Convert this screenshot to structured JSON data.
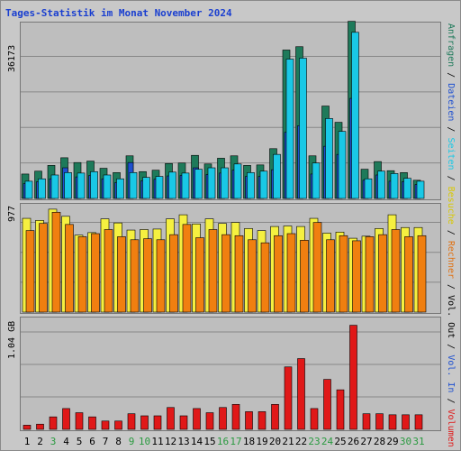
{
  "title": "Tages-Statistik im Monat November 2024",
  "colors": {
    "anfragen": "#1e7a5a",
    "dateien": "#1e50d0",
    "seiten": "#19c8e6",
    "besuche": "#f5f040",
    "rechner": "#f07f10",
    "volumen": "#e01818",
    "weekend": "#2a9a40"
  },
  "legend": {
    "top": [
      {
        "text": "Anfragen",
        "color": "#1e7a5a"
      },
      {
        "text": " / ",
        "color": "#000000"
      },
      {
        "text": "Dateien",
        "color": "#1e50d0"
      },
      {
        "text": " / ",
        "color": "#000000"
      },
      {
        "text": "Seiten",
        "color": "#19c8e6"
      },
      {
        "text": " / ",
        "color": "#000000"
      },
      {
        "text": "Besuche",
        "color": "#d8c800"
      },
      {
        "text": " / ",
        "color": "#000000"
      },
      {
        "text": "Rechner",
        "color": "#e07010"
      },
      {
        "text": " / ",
        "color": "#000000"
      },
      {
        "text": "Vol. Out",
        "color": "#000000"
      },
      {
        "text": " / ",
        "color": "#000000"
      },
      {
        "text": "Vol. In",
        "color": "#1e50d0"
      },
      {
        "text": " / ",
        "color": "#000000"
      },
      {
        "text": "Volumen",
        "color": "#e01818"
      }
    ]
  },
  "chart_data": [
    {
      "type": "bar",
      "title": "",
      "ymax_label": "36173",
      "ylim": [
        0,
        36173
      ],
      "categories": [
        "1",
        "2",
        "3",
        "4",
        "5",
        "6",
        "7",
        "8",
        "9",
        "10",
        "11",
        "12",
        "13",
        "14",
        "15",
        "16",
        "17",
        "18",
        "19",
        "20",
        "21",
        "22",
        "23",
        "24",
        "25",
        "26",
        "27",
        "28",
        "29",
        "30",
        "31"
      ],
      "weekend": [
        false,
        false,
        true,
        false,
        false,
        false,
        false,
        false,
        true,
        true,
        false,
        false,
        false,
        false,
        false,
        true,
        true,
        false,
        false,
        false,
        false,
        false,
        true,
        true,
        false,
        false,
        false,
        false,
        false,
        true,
        true
      ],
      "series": [
        {
          "name": "Anfragen",
          "values": [
            5100,
            5700,
            6900,
            8500,
            7500,
            7800,
            6300,
            5400,
            8900,
            5600,
            5900,
            7300,
            7400,
            9000,
            7200,
            8400,
            8900,
            6900,
            7000,
            10400,
            31000,
            31700,
            8900,
            19300,
            15900,
            37000,
            6100,
            7700,
            5800,
            5400,
            3800
          ]
        },
        {
          "name": "Dateien",
          "values": [
            3100,
            3500,
            4100,
            6400,
            4500,
            4800,
            4100,
            3300,
            7500,
            3700,
            4000,
            4700,
            4800,
            6400,
            5000,
            5300,
            5900,
            4600,
            4600,
            6000,
            13800,
            15200,
            5100,
            10900,
            9200,
            20900,
            3800,
            4900,
            3600,
            3500,
            2900
          ]
        },
        {
          "name": "Seiten",
          "values": [
            3600,
            4100,
            4900,
            5400,
            5300,
            5600,
            4900,
            4100,
            5400,
            4400,
            4600,
            5500,
            5300,
            6100,
            6400,
            6400,
            7200,
            5400,
            5700,
            9200,
            29100,
            29300,
            7400,
            16700,
            14000,
            34700,
            4100,
            5700,
            5200,
            4200,
            3600
          ]
        }
      ]
    },
    {
      "type": "bar",
      "title": "",
      "ymax_label": "977",
      "ylim": [
        0,
        977
      ],
      "categories": [
        "1",
        "2",
        "3",
        "4",
        "5",
        "6",
        "7",
        "8",
        "9",
        "10",
        "11",
        "12",
        "13",
        "14",
        "15",
        "16",
        "17",
        "18",
        "19",
        "20",
        "21",
        "22",
        "23",
        "24",
        "25",
        "26",
        "27",
        "28",
        "29",
        "30",
        "31"
      ],
      "series": [
        {
          "name": "Besuche",
          "values": [
            920,
            900,
            1010,
            940,
            755,
            780,
            915,
            875,
            805,
            810,
            815,
            915,
            955,
            865,
            915,
            870,
            880,
            820,
            800,
            840,
            845,
            840,
            920,
            775,
            785,
            725,
            745,
            820,
            955,
            830,
            830
          ]
        },
        {
          "name": "Rechner",
          "values": [
            800,
            870,
            980,
            860,
            740,
            770,
            810,
            740,
            710,
            720,
            710,
            760,
            860,
            730,
            810,
            760,
            750,
            710,
            680,
            750,
            770,
            705,
            880,
            710,
            750,
            700,
            740,
            760,
            810,
            740,
            750
          ]
        }
      ]
    },
    {
      "type": "bar",
      "title": "",
      "ymax_label": "1.04 GB",
      "ylim": [
        0,
        1.04
      ],
      "categories": [
        "1",
        "2",
        "3",
        "4",
        "5",
        "6",
        "7",
        "8",
        "9",
        "10",
        "11",
        "12",
        "13",
        "14",
        "15",
        "16",
        "17",
        "18",
        "19",
        "20",
        "21",
        "22",
        "23",
        "24",
        "25",
        "26",
        "27",
        "28",
        "29",
        "30",
        "31"
      ],
      "series": [
        {
          "name": "Volumen",
          "values": [
            0.04,
            0.05,
            0.12,
            0.2,
            0.16,
            0.12,
            0.08,
            0.08,
            0.15,
            0.13,
            0.13,
            0.21,
            0.13,
            0.2,
            0.16,
            0.21,
            0.24,
            0.17,
            0.17,
            0.24,
            0.6,
            0.68,
            0.2,
            0.48,
            0.38,
            1.0,
            0.15,
            0.15,
            0.14,
            0.14,
            0.14
          ]
        }
      ]
    }
  ]
}
